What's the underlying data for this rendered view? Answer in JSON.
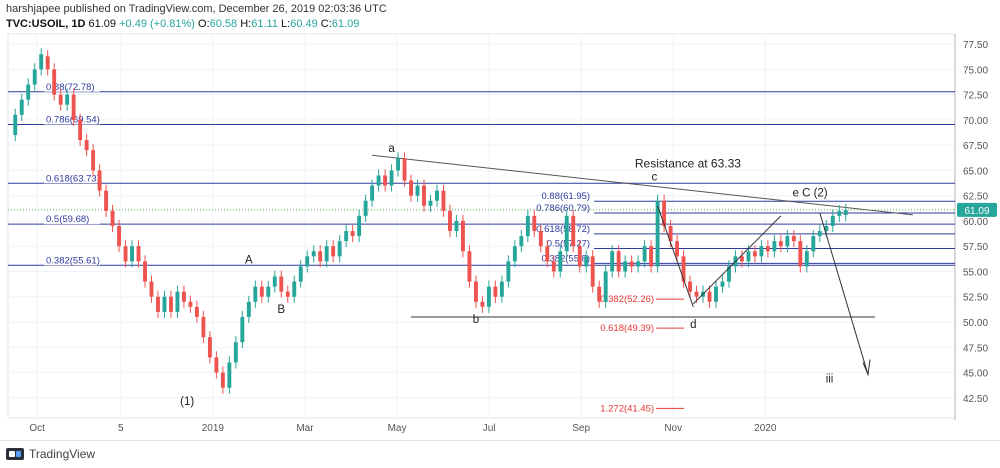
{
  "header": {
    "publisher_line": "harshjapee published on TradingView.com, December 26, 2019 02:03:36 UTC",
    "symbol": "TVC:USOIL, 1D",
    "last": "61.09",
    "change": "+0.49 (+0.81%)",
    "open_label": "O:",
    "open": "60.58",
    "high_label": "H:",
    "high": "61.11",
    "low_label": "L:",
    "low": "60.49",
    "close_label": "C:",
    "close": "61.09"
  },
  "footer": {
    "brand": "TradingView"
  },
  "chart_data": {
    "type": "candlestick",
    "symbol": "TVC:USOIL",
    "interval": "1D",
    "ylim": [
      40.5,
      78.5
    ],
    "y_ticks": [
      "77.50",
      "75.00",
      "72.50",
      "70.00",
      "67.50",
      "65.00",
      "62.50",
      "60.00",
      "57.50",
      "55.00",
      "52.50",
      "50.00",
      "47.50",
      "45.00",
      "42.50"
    ],
    "x_ticks": [
      {
        "label": "Oct",
        "t": 3
      },
      {
        "label": "5",
        "t": 13
      },
      {
        "label": "2019",
        "t": 24
      },
      {
        "label": "Mar",
        "t": 35
      },
      {
        "label": "May",
        "t": 46
      },
      {
        "label": "Jul",
        "t": 57
      },
      {
        "label": "Sep",
        "t": 68
      },
      {
        "label": "Nov",
        "t": 79
      },
      {
        "label": "2020",
        "t": 90
      }
    ],
    "x_range": [
      0,
      100
    ],
    "last_price": {
      "value": 61.09,
      "label": "61.09",
      "color": "#26a69a"
    },
    "candles": [
      [
        68.5,
        70.5
      ],
      [
        70.5,
        72.0
      ],
      [
        72.0,
        73.5
      ],
      [
        73.5,
        75.0
      ],
      [
        75.0,
        76.5
      ],
      [
        76.3,
        75.0
      ],
      [
        75.0,
        72.5
      ],
      [
        72.5,
        71.5
      ],
      [
        71.5,
        72.5
      ],
      [
        72.5,
        70.0
      ],
      [
        70.0,
        68.0
      ],
      [
        68.0,
        67.0
      ],
      [
        67.0,
        65.0
      ],
      [
        65.0,
        63.0
      ],
      [
        63.0,
        61.0
      ],
      [
        61.0,
        59.5
      ],
      [
        59.5,
        57.5
      ],
      [
        57.5,
        56.0
      ],
      [
        56.0,
        57.5
      ],
      [
        57.5,
        56.0
      ],
      [
        56.0,
        54.0
      ],
      [
        54.0,
        52.5
      ],
      [
        52.5,
        51.0
      ],
      [
        51.0,
        52.5
      ],
      [
        52.5,
        51.0
      ],
      [
        51.0,
        53.0
      ],
      [
        53.0,
        52.0
      ],
      [
        52.0,
        51.5
      ],
      [
        51.5,
        50.5
      ],
      [
        50.5,
        48.5
      ],
      [
        48.5,
        46.5
      ],
      [
        46.5,
        45.0
      ],
      [
        45.0,
        43.5
      ],
      [
        43.5,
        46.0
      ],
      [
        46.0,
        48.0
      ],
      [
        48.0,
        50.5
      ],
      [
        50.5,
        52.0
      ],
      [
        52.0,
        53.5
      ],
      [
        53.5,
        52.5
      ],
      [
        52.5,
        53.5
      ],
      [
        53.5,
        54.5
      ],
      [
        54.5,
        53.0
      ],
      [
        53.0,
        52.5
      ],
      [
        52.5,
        54.0
      ],
      [
        54.0,
        55.5
      ],
      [
        55.5,
        56.5
      ],
      [
        56.5,
        57.0
      ],
      [
        57.0,
        56.0
      ],
      [
        56.0,
        57.5
      ],
      [
        57.5,
        56.5
      ],
      [
        56.5,
        58.0
      ],
      [
        58.0,
        59.0
      ],
      [
        59.0,
        58.5
      ],
      [
        58.5,
        60.5
      ],
      [
        60.5,
        62.0
      ],
      [
        62.0,
        63.5
      ],
      [
        63.5,
        64.5
      ],
      [
        64.5,
        63.5
      ],
      [
        63.5,
        65.0
      ],
      [
        65.0,
        66.2
      ],
      [
        66.2,
        64.0
      ],
      [
        64.0,
        62.5
      ],
      [
        62.5,
        63.5
      ],
      [
        63.5,
        61.5
      ],
      [
        61.5,
        62.0
      ],
      [
        62.0,
        63.0
      ],
      [
        63.0,
        61.0
      ],
      [
        61.0,
        59.0
      ],
      [
        59.0,
        60.0
      ],
      [
        60.0,
        57.0
      ],
      [
        57.0,
        54.0
      ],
      [
        54.0,
        52.0
      ],
      [
        52.0,
        51.5
      ],
      [
        51.5,
        53.5
      ],
      [
        53.5,
        52.5
      ],
      [
        52.5,
        54.0
      ],
      [
        54.0,
        56.0
      ],
      [
        56.0,
        57.5
      ],
      [
        57.5,
        58.5
      ],
      [
        58.5,
        60.5
      ],
      [
        60.5,
        59.0
      ],
      [
        59.0,
        57.5
      ],
      [
        57.5,
        56.0
      ],
      [
        56.0,
        55.0
      ],
      [
        55.0,
        57.0
      ],
      [
        57.0,
        60.5
      ],
      [
        60.5,
        57.5
      ],
      [
        57.5,
        55.5
      ],
      [
        55.5,
        56.5
      ],
      [
        56.5,
        53.5
      ],
      [
        53.5,
        52.0
      ],
      [
        52.0,
        55.0
      ],
      [
        55.0,
        57.0
      ],
      [
        57.0,
        55.0
      ],
      [
        55.0,
        56.0
      ],
      [
        56.0,
        55.5
      ],
      [
        55.5,
        56.0
      ],
      [
        56.0,
        57.5
      ],
      [
        57.5,
        55.5
      ],
      [
        55.5,
        62.0
      ],
      [
        62.0,
        59.5
      ],
      [
        59.5,
        58.0
      ],
      [
        58.0,
        56.5
      ],
      [
        56.5,
        54.0
      ],
      [
        54.0,
        53.0
      ],
      [
        53.0,
        52.5
      ],
      [
        52.5,
        53.0
      ],
      [
        53.0,
        52.0
      ],
      [
        52.0,
        53.5
      ],
      [
        53.5,
        54.0
      ],
      [
        54.0,
        55.5
      ],
      [
        55.5,
        56.5
      ],
      [
        56.5,
        56.0
      ],
      [
        56.0,
        57.0
      ],
      [
        57.0,
        56.5
      ],
      [
        56.5,
        57.5
      ],
      [
        57.5,
        57.0
      ],
      [
        57.0,
        58.0
      ],
      [
        58.0,
        57.5
      ],
      [
        57.5,
        58.5
      ],
      [
        58.5,
        58.0
      ],
      [
        58.0,
        55.5
      ],
      [
        55.5,
        57.0
      ],
      [
        57.0,
        58.5
      ],
      [
        58.5,
        59.0
      ],
      [
        59.0,
        59.5
      ],
      [
        59.5,
        60.5
      ],
      [
        60.5,
        61.0
      ],
      [
        60.58,
        61.09
      ]
    ],
    "fib_levels": [
      {
        "label": "0.88(72.78)",
        "value": 72.78
      },
      {
        "label": "0.786(69.54)",
        "value": 69.54
      },
      {
        "label": "0.618(63.73)",
        "value": 63.73
      },
      {
        "label": "0.5(59.68)",
        "value": 59.68
      },
      {
        "label": "0.382(55.61)",
        "value": 55.61
      }
    ],
    "fib_levels_2": [
      {
        "label": "0.88(61.95)",
        "value": 61.95
      },
      {
        "label": "0.786(60.79)",
        "value": 60.79
      },
      {
        "label": "0.618(58.72)",
        "value": 58.72
      },
      {
        "label": "0.5(57.27)",
        "value": 57.27
      },
      {
        "label": "0.382(55.8)",
        "value": 55.8
      }
    ],
    "fib_ext": [
      {
        "label": "0.382(52.26)",
        "value": 52.26
      },
      {
        "label": "0.618(49.39)",
        "value": 49.39
      },
      {
        "label": "1.272(41.45)",
        "value": 41.45
      }
    ],
    "wave_labels": [
      {
        "text": "(1)",
        "t": 27,
        "v": 41.8
      },
      {
        "text": "A",
        "t": 36.5,
        "v": 55.8
      },
      {
        "text": "B",
        "t": 41.5,
        "v": 50.9
      },
      {
        "text": "a",
        "t": 58.5,
        "v": 66.8
      },
      {
        "text": "b",
        "t": 71.5,
        "v": 49.9
      },
      {
        "text": "c",
        "t": 99,
        "v": 64.0
      },
      {
        "text": "d",
        "t": 105,
        "v": 49.4
      },
      {
        "text": "e C (2)",
        "t": 123,
        "v": 62.4
      },
      {
        "text": "iii",
        "t": 126,
        "v": 44.0
      }
    ],
    "annotations": [
      {
        "text": "Resistance at 63.33",
        "t": 96,
        "v": 65.3
      }
    ]
  }
}
